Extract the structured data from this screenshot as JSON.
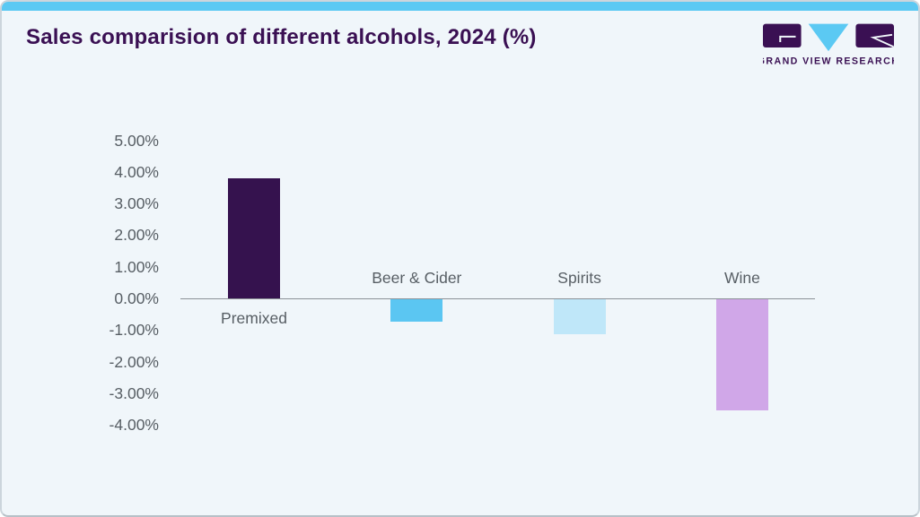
{
  "page": {
    "title": "Sales comparision of different alcohols, 2024 (%)",
    "logo": {
      "text": "GRAND VIEW RESEARCH"
    }
  },
  "colors": {
    "accent_blue": "#5bc9f3",
    "title_purple": "#3a1053",
    "card_background": "#f0f6fa",
    "axis_line": "#8b9197",
    "label_gray": "#575e64"
  },
  "chart_data": {
    "type": "bar",
    "title": "Sales comparision of different alcohols, 2024 (%)",
    "categories": [
      "Premixed",
      "Beer & Cider",
      "Spirits",
      "Wine"
    ],
    "values": [
      3.8,
      -0.7,
      -1.1,
      -3.5
    ],
    "bar_colors": [
      "#35124e",
      "#5bc6f2",
      "#bfe7f9",
      "#d0a7e8"
    ],
    "unit": "%",
    "ylim": [
      -4,
      5
    ],
    "yticks": [
      5,
      4,
      3,
      2,
      1,
      0,
      -1,
      -2,
      -3,
      -4
    ],
    "ytick_labels": [
      "5.00%",
      "4.00%",
      "3.00%",
      "2.00%",
      "1.00%",
      "0.00%",
      "-1.00%",
      "-2.00%",
      "-3.00%",
      "-4.00%"
    ],
    "grid": false,
    "legend": "none",
    "xlabel": "",
    "ylabel": ""
  }
}
